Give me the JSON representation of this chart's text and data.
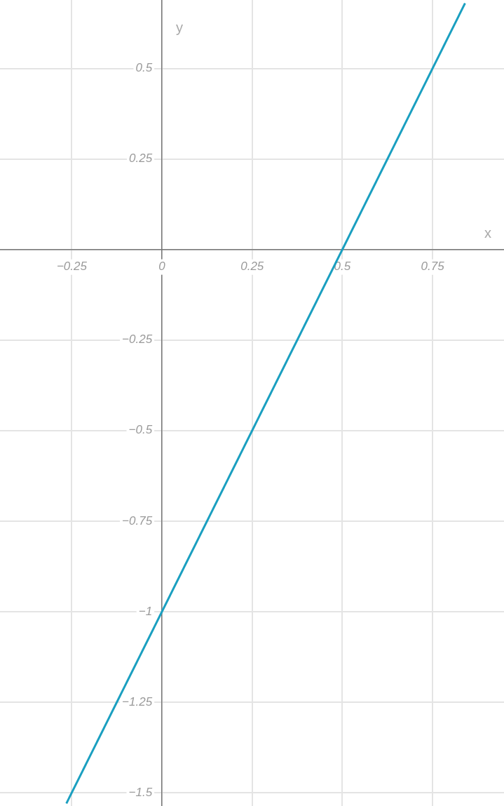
{
  "chart_data": {
    "type": "line",
    "xlabel": "x",
    "ylabel": "y",
    "xlim": [
      -0.449,
      0.948
    ],
    "ylim": [
      -1.537,
      0.689
    ],
    "xticks": [
      -0.25,
      0,
      0.25,
      0.5,
      0.75
    ],
    "yticks": [
      -1.5,
      -1.25,
      -1,
      -0.75,
      -0.5,
      -0.25,
      {
        "value": 0,
        "label": null
      },
      0.25,
      0.5
    ],
    "grid": true,
    "marker": "none",
    "line_style": "solid",
    "series": [
      {
        "color": "#1a9fc0",
        "x": [
          -0.265,
          0.84
        ],
        "values": [
          -1.53,
          0.68
        ]
      }
    ]
  }
}
